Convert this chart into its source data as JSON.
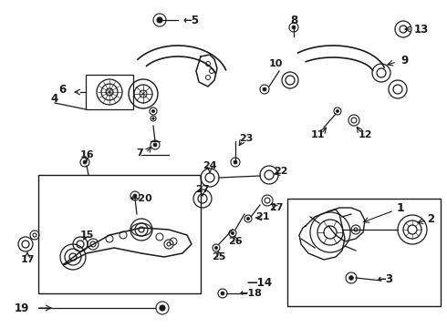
{
  "background_color": "#ffffff",
  "figsize": [
    4.9,
    3.6
  ],
  "dpi": 100,
  "col": "#1a1a1a"
}
